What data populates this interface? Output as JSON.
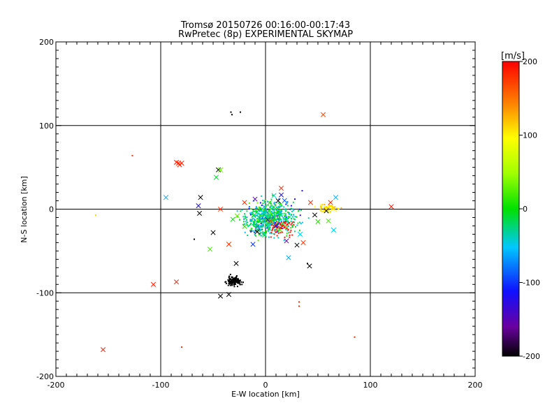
{
  "chart_data": {
    "type": "scatter",
    "title": "Tromsø 20150726 00:16:00-00:17:43",
    "subtitle": "RwPretec (8p) EXPERIMENTAL SKYMAP",
    "xlabel": "E-W location [km]",
    "ylabel": "N-S location [km]",
    "xlim": [
      -200,
      200
    ],
    "ylim": [
      -200,
      200
    ],
    "xticks": [
      -200,
      -100,
      0,
      100,
      200
    ],
    "yticks": [
      -200,
      -100,
      0,
      100,
      200
    ],
    "grid_lines": [
      -100,
      0,
      100
    ],
    "colorbar": {
      "label": "[m/s]",
      "min": -200,
      "max": 200,
      "ticks": [
        200,
        100,
        0,
        -100,
        -200
      ]
    },
    "marker_legend": "x = large markers, dot = small markers",
    "points": [
      {
        "x": 55,
        "y": 113,
        "v": 170,
        "m": "x"
      },
      {
        "x": -127,
        "y": 64,
        "v": 180,
        "m": "dot"
      },
      {
        "x": -85,
        "y": 56,
        "v": 190,
        "m": "x"
      },
      {
        "x": -83,
        "y": 55,
        "v": 185,
        "m": "x"
      },
      {
        "x": -80,
        "y": 55,
        "v": 190,
        "m": "x"
      },
      {
        "x": -82,
        "y": 53,
        "v": 185,
        "m": "x"
      },
      {
        "x": -95,
        "y": 14,
        "v": -60,
        "m": "x"
      },
      {
        "x": -162,
        "y": -7,
        "v": 110,
        "m": "dot"
      },
      {
        "x": -107,
        "y": -90,
        "v": 190,
        "m": "x"
      },
      {
        "x": -85,
        "y": -87,
        "v": 185,
        "m": "x"
      },
      {
        "x": -155,
        "y": -168,
        "v": 185,
        "m": "x"
      },
      {
        "x": -80,
        "y": -165,
        "v": 180,
        "m": "dot"
      },
      {
        "x": 85,
        "y": -153,
        "v": 185,
        "m": "dot"
      },
      {
        "x": 120,
        "y": 3,
        "v": 190,
        "m": "x"
      },
      {
        "x": 32,
        "y": -111,
        "v": 180,
        "m": "dot"
      },
      {
        "x": 32,
        "y": -116,
        "v": 180,
        "m": "dot"
      },
      {
        "x": -33,
        "y": 116,
        "v": -200,
        "m": "dot"
      },
      {
        "x": -32,
        "y": 113,
        "v": -200,
        "m": "dot"
      },
      {
        "x": -24,
        "y": 116,
        "v": -200,
        "m": "dot"
      },
      {
        "x": -62,
        "y": 14,
        "v": -200,
        "m": "x"
      },
      {
        "x": -63,
        "y": -5,
        "v": -200,
        "m": "x"
      },
      {
        "x": -64,
        "y": 4,
        "v": -120,
        "m": "x"
      },
      {
        "x": -50,
        "y": -28,
        "v": -200,
        "m": "x"
      },
      {
        "x": -47,
        "y": 38,
        "v": -10,
        "m": "x"
      },
      {
        "x": -45,
        "y": 47,
        "v": -200,
        "m": "x"
      },
      {
        "x": -43,
        "y": 47,
        "v": 30,
        "m": "x"
      },
      {
        "x": -43,
        "y": 0,
        "v": 180,
        "m": "x"
      },
      {
        "x": -53,
        "y": -48,
        "v": 20,
        "m": "x"
      },
      {
        "x": -68,
        "y": -36,
        "v": -200,
        "m": "dot"
      },
      {
        "x": -43,
        "y": -104,
        "v": -200,
        "m": "x"
      },
      {
        "x": -35,
        "y": -102,
        "v": -200,
        "m": "x"
      },
      {
        "x": -28,
        "y": -65,
        "v": -200,
        "m": "x"
      },
      {
        "x": 42,
        "y": -68,
        "v": -200,
        "m": "x"
      },
      {
        "x": 30,
        "y": -43,
        "v": -200,
        "m": "x"
      },
      {
        "x": 40,
        "y": -65,
        "v": -200,
        "m": "dot"
      },
      {
        "x": 62,
        "y": 8,
        "v": 180,
        "m": "x"
      },
      {
        "x": 58,
        "y": -2,
        "v": -200,
        "m": "x"
      },
      {
        "x": 47,
        "y": -7,
        "v": -200,
        "m": "x"
      },
      {
        "x": 43,
        "y": 8,
        "v": 180,
        "m": "x"
      },
      {
        "x": 67,
        "y": 14,
        "v": -60,
        "m": "x"
      },
      {
        "x": 60,
        "y": -14,
        "v": 20,
        "m": "x"
      },
      {
        "x": 65,
        "y": -25,
        "v": -50,
        "m": "x"
      },
      {
        "x": 50,
        "y": -15,
        "v": 10,
        "m": "x"
      },
      {
        "x": 33,
        "y": -30,
        "v": -50,
        "m": "x"
      },
      {
        "x": 22,
        "y": -58,
        "v": -60,
        "m": "x"
      },
      {
        "x": 10,
        "y": -20,
        "v": -110,
        "m": "x"
      },
      {
        "x": 15,
        "y": 25,
        "v": 180,
        "m": "x"
      },
      {
        "x": 12,
        "y": 10,
        "v": -200,
        "m": "x"
      },
      {
        "x": 15,
        "y": 17,
        "v": -120,
        "m": "x"
      },
      {
        "x": -20,
        "y": 8,
        "v": 180,
        "m": "x"
      },
      {
        "x": -27,
        "y": -8,
        "v": 30,
        "m": "x"
      },
      {
        "x": -12,
        "y": -42,
        "v": -100,
        "m": "x"
      },
      {
        "x": -35,
        "y": -42,
        "v": 180,
        "m": "x"
      },
      {
        "x": -8,
        "y": -27,
        "v": -200,
        "m": "x"
      },
      {
        "x": -10,
        "y": 12,
        "v": -150,
        "m": "x"
      },
      {
        "x": -2,
        "y": -4,
        "v": -50,
        "m": "x"
      },
      {
        "x": 5,
        "y": -14,
        "v": 170,
        "m": "x"
      },
      {
        "x": 20,
        "y": -38,
        "v": -150,
        "m": "x"
      },
      {
        "x": 36,
        "y": -40,
        "v": 180,
        "m": "x"
      },
      {
        "x": 28,
        "y": 12,
        "v": -120,
        "m": "dot"
      },
      {
        "x": 35,
        "y": 22,
        "v": -120,
        "m": "dot"
      }
    ]
  }
}
